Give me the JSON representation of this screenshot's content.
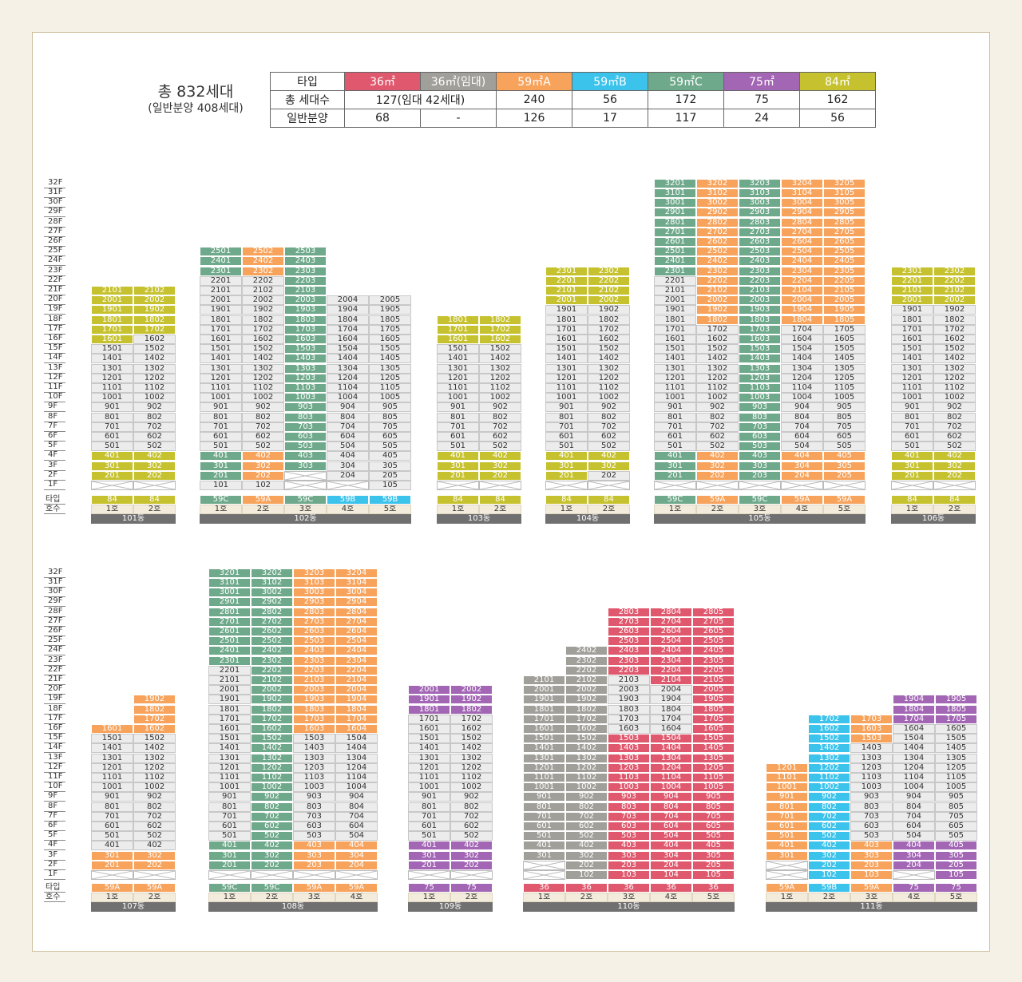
{
  "header": {
    "title": "총 832세대",
    "subtitle": "(일반분양 408세대)"
  },
  "summary": {
    "row_labels": [
      "타입",
      "총 세대수",
      "일반분양"
    ],
    "types": [
      {
        "label": "36㎡",
        "color": "#e0586d"
      },
      {
        "label": "36㎡(임대)",
        "color": "#a09f99"
      },
      {
        "label": "59㎡A",
        "color": "#f7a35c"
      },
      {
        "label": "59㎡B",
        "color": "#3cc3ec"
      },
      {
        "label": "59㎡C",
        "color": "#6fa98b"
      },
      {
        "label": "75㎡",
        "color": "#a266b4"
      },
      {
        "label": "84㎡",
        "color": "#c6c22f"
      }
    ],
    "totals": [
      "127(임대 42세대)",
      "240",
      "56",
      "172",
      "75",
      "162"
    ],
    "general": [
      "68",
      "-",
      "126",
      "17",
      "117",
      "24",
      "56"
    ]
  },
  "legend": {
    "type_label": "타입",
    "unit_label": "호수",
    "colors": {
      "36": "#e0586d",
      "36R": "#a09f99",
      "59A": "#f7a35c",
      "59B": "#3cc3ec",
      "59C": "#6fa98b",
      "75": "#a266b4",
      "84": "#c6c22f",
      "none": "#ececec"
    }
  },
  "buildings": [
    {
      "name": "101동",
      "types": [
        "84",
        "84"
      ],
      "units": [
        "1호",
        "2호"
      ],
      "top": [
        21,
        21
      ],
      "missing": [
        [
          1
        ],
        [
          1
        ]
      ],
      "colored": [
        {
          "col": 0,
          "from": 2,
          "to": 4,
          "type": "84"
        },
        {
          "col": 1,
          "from": 2,
          "to": 4,
          "type": "84"
        },
        {
          "col": 0,
          "from": 16,
          "to": 21,
          "type": "84"
        },
        {
          "col": 1,
          "from": 17,
          "to": 21,
          "type": "84"
        }
      ]
    },
    {
      "name": "102동",
      "types": [
        "59C",
        "59A",
        "59C",
        "59B",
        "59B"
      ],
      "units": [
        "1호",
        "2호",
        "3호",
        "4호",
        "5호"
      ],
      "top": [
        25,
        25,
        25,
        20,
        20
      ],
      "missing": [
        [],
        [],
        [
          1,
          2
        ],
        [
          1
        ],
        []
      ],
      "colored": [
        {
          "col": 0,
          "from": 2,
          "to": 4,
          "type": "59C"
        },
        {
          "col": 1,
          "from": 2,
          "to": 4,
          "type": "59A"
        },
        {
          "col": 2,
          "from": 3,
          "to": 4,
          "type": "59C"
        },
        {
          "col": 0,
          "from": 23,
          "to": 25,
          "type": "59C"
        },
        {
          "col": 1,
          "from": 23,
          "to": 25,
          "type": "59A"
        },
        {
          "col": 2,
          "from": 5,
          "to": 25,
          "type": "59C"
        }
      ]
    },
    {
      "name": "103동",
      "types": [
        "84",
        "84"
      ],
      "units": [
        "1호",
        "2호"
      ],
      "top": [
        18,
        18
      ],
      "missing": [
        [
          1
        ],
        [
          1
        ]
      ],
      "colored": [
        {
          "col": 0,
          "from": 2,
          "to": 4,
          "type": "84"
        },
        {
          "col": 1,
          "from": 2,
          "to": 4,
          "type": "84"
        },
        {
          "col": 0,
          "from": 16,
          "to": 18,
          "type": "84"
        },
        {
          "col": 1,
          "from": 16,
          "to": 18,
          "type": "84"
        }
      ]
    },
    {
      "name": "104동",
      "types": [
        "84",
        "84"
      ],
      "units": [
        "1호",
        "2호"
      ],
      "top": [
        23,
        23
      ],
      "missing": [
        [
          1
        ],
        [
          1
        ]
      ],
      "colored": [
        {
          "col": 0,
          "from": 2,
          "to": 4,
          "type": "84"
        },
        {
          "col": 1,
          "from": 3,
          "to": 4,
          "type": "84"
        },
        {
          "col": 0,
          "from": 20,
          "to": 23,
          "type": "84"
        },
        {
          "col": 1,
          "from": 20,
          "to": 23,
          "type": "84"
        }
      ]
    },
    {
      "name": "105동",
      "types": [
        "59C",
        "59A",
        "59C",
        "59A",
        "59A"
      ],
      "units": [
        "1호",
        "2호",
        "3호",
        "4호",
        "5호"
      ],
      "top": [
        32,
        32,
        32,
        32,
        32
      ],
      "missing": [
        [
          1
        ],
        [
          1
        ],
        [
          1
        ],
        [
          1
        ],
        [
          1
        ]
      ],
      "colored": [
        {
          "col": 0,
          "from": 2,
          "to": 4,
          "type": "59C"
        },
        {
          "col": 1,
          "from": 2,
          "to": 4,
          "type": "59A"
        },
        {
          "col": 2,
          "from": 2,
          "to": 4,
          "type": "59C"
        },
        {
          "col": 3,
          "from": 2,
          "to": 4,
          "type": "59A"
        },
        {
          "col": 4,
          "from": 2,
          "to": 4,
          "type": "59A"
        },
        {
          "col": 0,
          "from": 23,
          "to": 32,
          "type": "59C"
        },
        {
          "col": 1,
          "from": 18,
          "to": 32,
          "type": "59A"
        },
        {
          "col": 1,
          "from": 5,
          "to": 17,
          "type": "none"
        },
        {
          "col": 2,
          "from": 5,
          "to": 32,
          "type": "59C"
        },
        {
          "col": 3,
          "from": 18,
          "to": 32,
          "type": "59A"
        },
        {
          "col": 4,
          "from": 18,
          "to": 32,
          "type": "59A"
        }
      ]
    },
    {
      "name": "106동",
      "types": [
        "84",
        "84"
      ],
      "units": [
        "1호",
        "2호"
      ],
      "top": [
        23,
        23
      ],
      "missing": [
        [
          1
        ],
        [
          1
        ]
      ],
      "colored": [
        {
          "col": 0,
          "from": 2,
          "to": 4,
          "type": "84"
        },
        {
          "col": 1,
          "from": 2,
          "to": 4,
          "type": "84"
        },
        {
          "col": 0,
          "from": 20,
          "to": 23,
          "type": "84"
        },
        {
          "col": 1,
          "from": 20,
          "to": 23,
          "type": "84"
        }
      ]
    },
    {
      "name": "107동",
      "types": [
        "59A",
        "59A"
      ],
      "units": [
        "1호",
        "2호"
      ],
      "top": [
        16,
        19
      ],
      "missing": [
        [
          1
        ],
        [
          1
        ]
      ],
      "colored": [
        {
          "col": 0,
          "from": 2,
          "to": 3,
          "type": "59A"
        },
        {
          "col": 1,
          "from": 2,
          "to": 3,
          "type": "59A"
        },
        {
          "col": 0,
          "from": 16,
          "to": 16,
          "type": "59A"
        },
        {
          "col": 1,
          "from": 16,
          "to": 19,
          "type": "59A"
        }
      ]
    },
    {
      "name": "108동",
      "types": [
        "59C",
        "59C",
        "59A",
        "59A"
      ],
      "units": [
        "1호",
        "2호",
        "3호",
        "4호"
      ],
      "top": [
        32,
        32,
        32,
        32
      ],
      "missing": [
        [
          1
        ],
        [
          1
        ],
        [
          1
        ],
        [
          1
        ]
      ],
      "colored": [
        {
          "col": 0,
          "from": 2,
          "to": 4,
          "type": "59C"
        },
        {
          "col": 1,
          "from": 2,
          "to": 4,
          "type": "59C"
        },
        {
          "col": 2,
          "from": 2,
          "to": 4,
          "type": "59A"
        },
        {
          "col": 3,
          "from": 2,
          "to": 4,
          "type": "59A"
        },
        {
          "col": 0,
          "from": 23,
          "to": 32,
          "type": "59C"
        },
        {
          "col": 1,
          "from": 5,
          "to": 32,
          "type": "59C"
        },
        {
          "col": 2,
          "from": 16,
          "to": 32,
          "type": "59A"
        },
        {
          "col": 3,
          "from": 16,
          "to": 32,
          "type": "59A"
        }
      ]
    },
    {
      "name": "109동",
      "types": [
        "75",
        "75"
      ],
      "units": [
        "1호",
        "2호"
      ],
      "top": [
        20,
        20
      ],
      "missing": [
        [
          1
        ],
        [
          1
        ]
      ],
      "colored": [
        {
          "col": 0,
          "from": 2,
          "to": 4,
          "type": "75"
        },
        {
          "col": 1,
          "from": 2,
          "to": 4,
          "type": "75"
        },
        {
          "col": 0,
          "from": 18,
          "to": 20,
          "type": "75"
        },
        {
          "col": 1,
          "from": 18,
          "to": 20,
          "type": "75"
        }
      ]
    },
    {
      "name": "110동",
      "types": [
        "36",
        "36",
        "36",
        "36",
        "36"
      ],
      "units": [
        "1호",
        "2호",
        "3호",
        "4호",
        "5호"
      ],
      "top": [
        21,
        24,
        28,
        28,
        28
      ],
      "missing": [
        [
          1,
          2
        ],
        [],
        [],
        [],
        []
      ],
      "colored": [
        {
          "col": 0,
          "from": 3,
          "to": 21,
          "type": "36R"
        },
        {
          "col": 1,
          "from": 1,
          "to": 24,
          "type": "36R"
        },
        {
          "col": 2,
          "from": 1,
          "to": 15,
          "type": "36"
        },
        {
          "col": 2,
          "from": 22,
          "to": 28,
          "type": "36"
        },
        {
          "col": 3,
          "from": 1,
          "to": 15,
          "type": "36"
        },
        {
          "col": 3,
          "from": 21,
          "to": 28,
          "type": "36"
        },
        {
          "col": 4,
          "from": 1,
          "to": 28,
          "type": "36"
        }
      ]
    },
    {
      "name": "111동",
      "types": [
        "59A",
        "59B",
        "59A",
        "75",
        "75"
      ],
      "units": [
        "1호",
        "2호",
        "3호",
        "4호",
        "5호"
      ],
      "top": [
        12,
        17,
        17,
        19,
        19
      ],
      "missing": [
        [
          1,
          2
        ],
        [],
        [],
        [
          1
        ],
        []
      ],
      "colored": [
        {
          "col": 0,
          "from": 3,
          "to": 12,
          "type": "59A"
        },
        {
          "col": 1,
          "from": 1,
          "to": 17,
          "type": "59B"
        },
        {
          "col": 2,
          "from": 1,
          "to": 4,
          "type": "59A"
        },
        {
          "col": 2,
          "from": 15,
          "to": 17,
          "type": "59A"
        },
        {
          "col": 3,
          "from": 2,
          "to": 4,
          "type": "75"
        },
        {
          "col": 3,
          "from": 17,
          "to": 19,
          "type": "75"
        },
        {
          "col": 4,
          "from": 1,
          "to": 4,
          "type": "75"
        },
        {
          "col": 4,
          "from": 17,
          "to": 19,
          "type": "75"
        }
      ]
    }
  ]
}
